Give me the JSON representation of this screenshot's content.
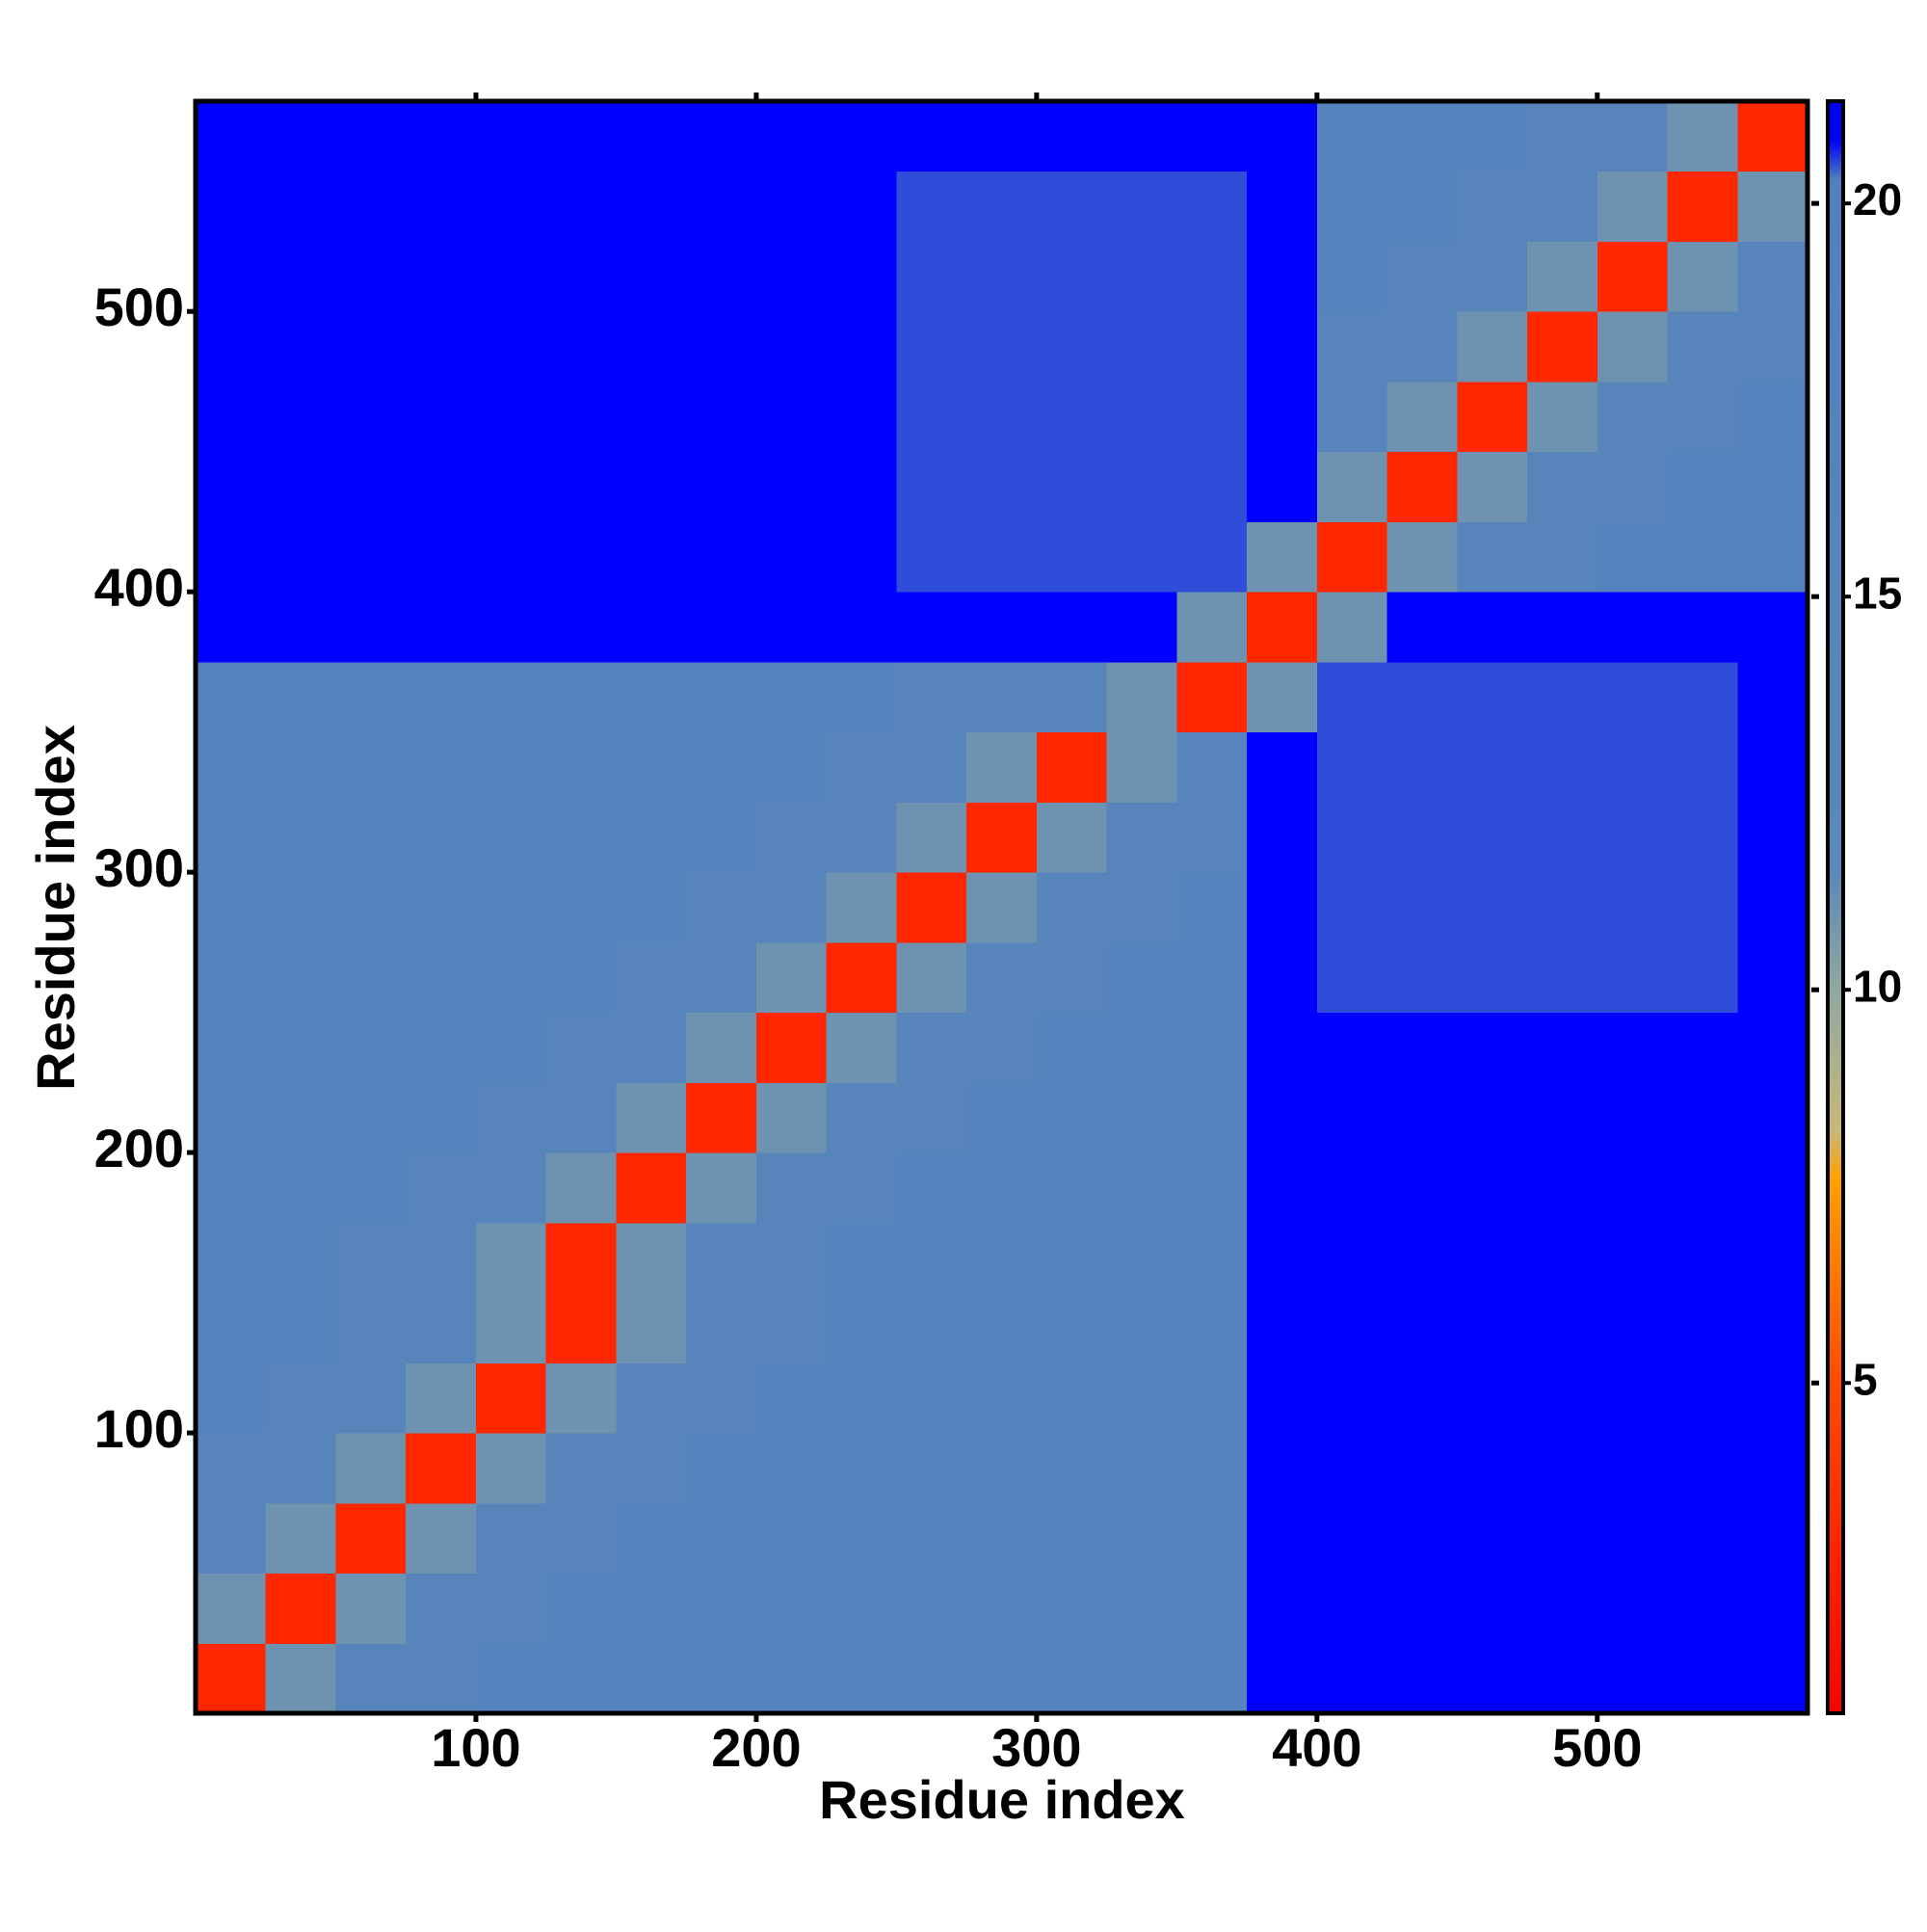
{
  "chart_data": {
    "type": "heatmap",
    "x_label": "Residue index",
    "y_label": "Residue index",
    "x_bins": [
      0,
      25,
      50,
      75,
      100,
      125,
      150,
      175,
      200,
      225,
      250,
      275,
      300,
      325,
      350,
      375,
      400,
      425,
      450,
      475,
      500,
      525,
      550,
      575
    ],
    "y_bins": [
      0,
      25,
      50,
      75,
      100,
      125,
      150,
      175,
      200,
      225,
      250,
      275,
      300,
      325,
      350,
      375,
      400,
      425,
      450,
      475,
      500,
      525,
      550,
      575
    ],
    "values": [
      [
        3,
        11,
        15,
        15,
        17,
        17,
        17,
        17,
        17,
        17,
        17,
        17,
        17,
        17,
        17,
        21,
        21,
        21,
        21,
        21,
        21,
        21,
        21
      ],
      [
        11,
        3,
        11,
        15,
        15,
        17,
        17,
        17,
        17,
        17,
        17,
        17,
        17,
        17,
        17,
        21,
        21,
        21,
        21,
        21,
        21,
        21,
        21
      ],
      [
        15,
        11,
        3,
        11,
        15,
        15,
        17,
        17,
        17,
        17,
        17,
        17,
        17,
        17,
        17,
        21,
        21,
        21,
        21,
        21,
        21,
        21,
        21
      ],
      [
        15,
        15,
        11,
        3,
        11,
        15,
        15,
        17,
        17,
        17,
        17,
        17,
        17,
        17,
        17,
        21,
        21,
        21,
        21,
        21,
        21,
        21,
        21
      ],
      [
        17,
        15,
        15,
        11,
        3,
        11,
        15,
        15,
        17,
        17,
        17,
        17,
        17,
        17,
        17,
        21,
        21,
        21,
        21,
        21,
        21,
        21,
        21
      ],
      [
        17,
        17,
        15,
        15,
        11,
        3,
        11,
        15,
        15,
        17,
        17,
        17,
        17,
        17,
        17,
        21,
        21,
        21,
        21,
        21,
        21,
        21,
        21
      ],
      [
        17,
        17,
        15,
        15,
        11,
        3,
        11,
        15,
        15,
        17,
        17,
        17,
        17,
        17,
        17,
        21,
        21,
        21,
        21,
        21,
        21,
        21,
        21
      ],
      [
        17,
        17,
        17,
        15,
        15,
        11,
        3,
        11,
        15,
        15,
        17,
        17,
        17,
        17,
        17,
        21,
        21,
        21,
        21,
        21,
        21,
        21,
        21
      ],
      [
        17,
        17,
        17,
        17,
        15,
        15,
        11,
        3,
        11,
        15,
        15,
        17,
        17,
        17,
        17,
        21,
        21,
        21,
        21,
        21,
        21,
        21,
        21
      ],
      [
        17,
        17,
        17,
        17,
        17,
        15,
        15,
        11,
        3,
        11,
        15,
        15,
        17,
        17,
        17,
        21,
        21,
        21,
        21,
        21,
        21,
        21,
        21
      ],
      [
        17,
        17,
        17,
        17,
        17,
        17,
        15,
        15,
        11,
        3,
        11,
        15,
        15,
        17,
        17,
        21,
        20.5,
        20.5,
        20.5,
        20.5,
        20.5,
        20.5,
        21
      ],
      [
        17,
        17,
        17,
        17,
        17,
        17,
        17,
        15,
        15,
        11,
        3,
        11,
        15,
        15,
        17,
        21,
        20.5,
        20.5,
        20.5,
        20.5,
        20.5,
        20.5,
        21
      ],
      [
        17,
        17,
        17,
        17,
        17,
        17,
        17,
        17,
        15,
        15,
        11,
        3,
        11,
        15,
        15,
        21,
        20.5,
        20.5,
        20.5,
        20.5,
        20.5,
        20.5,
        21
      ],
      [
        17,
        17,
        17,
        17,
        17,
        17,
        17,
        17,
        17,
        15,
        15,
        11,
        3,
        11,
        15,
        21,
        20.5,
        20.5,
        20.5,
        20.5,
        20.5,
        20.5,
        21
      ],
      [
        17,
        17,
        17,
        17,
        17,
        17,
        17,
        17,
        17,
        17,
        15,
        15,
        15,
        11,
        3,
        11,
        20.5,
        20.5,
        20.5,
        20.5,
        20.5,
        20.5,
        21
      ],
      [
        21,
        21,
        21,
        21,
        21,
        21,
        21,
        21,
        21,
        21,
        21,
        21,
        21,
        21,
        11,
        3,
        11,
        21,
        21,
        21,
        21,
        21,
        21
      ],
      [
        21,
        21,
        21,
        21,
        21,
        21,
        21,
        21,
        21,
        21,
        20.5,
        20.5,
        20.5,
        20.5,
        20.5,
        11,
        3,
        11,
        15,
        15,
        17,
        17,
        17
      ],
      [
        21,
        21,
        21,
        21,
        21,
        21,
        21,
        21,
        21,
        21,
        20.5,
        20.5,
        20.5,
        20.5,
        20.5,
        21,
        11,
        3,
        11,
        15,
        15,
        17,
        17
      ],
      [
        21,
        21,
        21,
        21,
        21,
        21,
        21,
        21,
        21,
        21,
        20.5,
        20.5,
        20.5,
        20.5,
        20.5,
        21,
        15,
        11,
        3,
        11,
        15,
        15,
        17
      ],
      [
        21,
        21,
        21,
        21,
        21,
        21,
        21,
        21,
        21,
        21,
        20.5,
        20.5,
        20.5,
        20.5,
        20.5,
        21,
        15,
        15,
        11,
        3,
        11,
        15,
        15
      ],
      [
        21,
        21,
        21,
        21,
        21,
        21,
        21,
        21,
        21,
        21,
        20.5,
        20.5,
        20.5,
        20.5,
        20.5,
        21,
        17,
        15,
        15,
        11,
        3,
        11,
        15
      ],
      [
        21,
        21,
        21,
        21,
        21,
        21,
        21,
        21,
        21,
        21,
        20.5,
        20.5,
        20.5,
        20.5,
        20.5,
        21,
        17,
        17,
        15,
        15,
        11,
        3,
        11
      ],
      [
        21,
        21,
        21,
        21,
        21,
        21,
        21,
        21,
        21,
        21,
        21,
        21,
        21,
        21,
        21,
        21,
        17,
        17,
        17,
        15,
        15,
        11,
        3
      ]
    ],
    "xlim": [
      0,
      575
    ],
    "ylim": [
      0,
      575
    ],
    "xticks": [
      100,
      200,
      300,
      400,
      500
    ],
    "yticks": [
      100,
      200,
      300,
      400,
      500
    ],
    "clim": [
      0.8,
      21.3
    ],
    "cticks": [
      5,
      10,
      15,
      20
    ],
    "colorscale": [
      [
        0.8,
        "#ff0000"
      ],
      [
        5,
        "#ff4a00"
      ],
      [
        7.6,
        "#ffa000"
      ],
      [
        8.2,
        "#c8b878"
      ],
      [
        10,
        "#90a8a0"
      ],
      [
        11.5,
        "#5b88b8"
      ],
      [
        20.3,
        "#5080c0"
      ],
      [
        20.8,
        "#0000ff"
      ],
      [
        21.3,
        "#0000ff"
      ]
    ]
  }
}
